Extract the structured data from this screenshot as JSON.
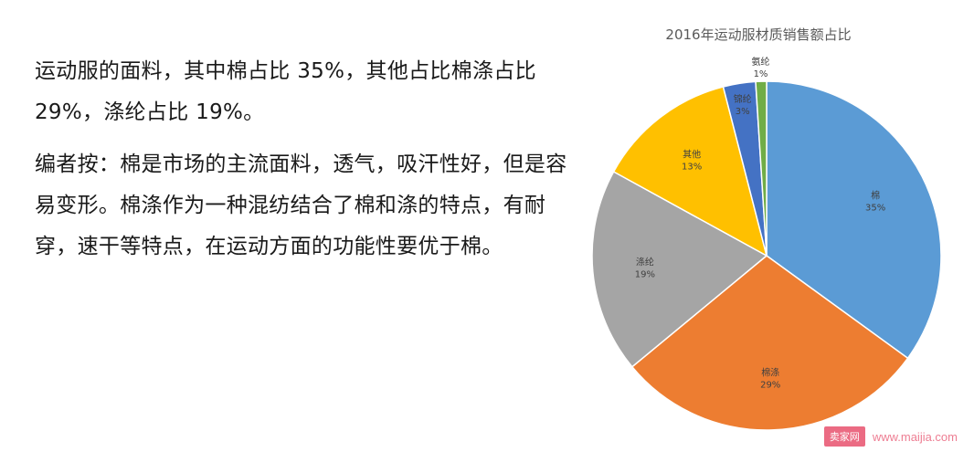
{
  "text": {
    "para1": "运动服的面料，其中棉占比 35%，其他占比棉涤占比 29%，涤纶占比 19%。",
    "para2": "编者按：棉是市场的主流面料，透气，吸汗性好，但是容易变形。棉涤作为一种混纺结合了棉和涤的特点，有耐穿，速干等特点，在运动方面的功能性要优于棉。"
  },
  "watermark": {
    "logo_text": "卖家网",
    "url": "www.maijia.com"
  },
  "chart_data": {
    "type": "pie",
    "title": "2016年运动服材质销售额占比",
    "slices": [
      {
        "label": "棉",
        "value": 35,
        "display": "35%",
        "color": "#5b9bd5"
      },
      {
        "label": "棉涤",
        "value": 29,
        "display": "29%",
        "color": "#ed7d31"
      },
      {
        "label": "涤纶",
        "value": 19,
        "display": "19%",
        "color": "#a5a5a5"
      },
      {
        "label": "其他",
        "value": 13,
        "display": "13%",
        "color": "#ffc000"
      },
      {
        "label": "锦纶",
        "value": 3,
        "display": "3%",
        "color": "#4472c4"
      },
      {
        "label": "氨纶",
        "value": 1,
        "display": "1%",
        "color": "#70ad47"
      }
    ]
  }
}
